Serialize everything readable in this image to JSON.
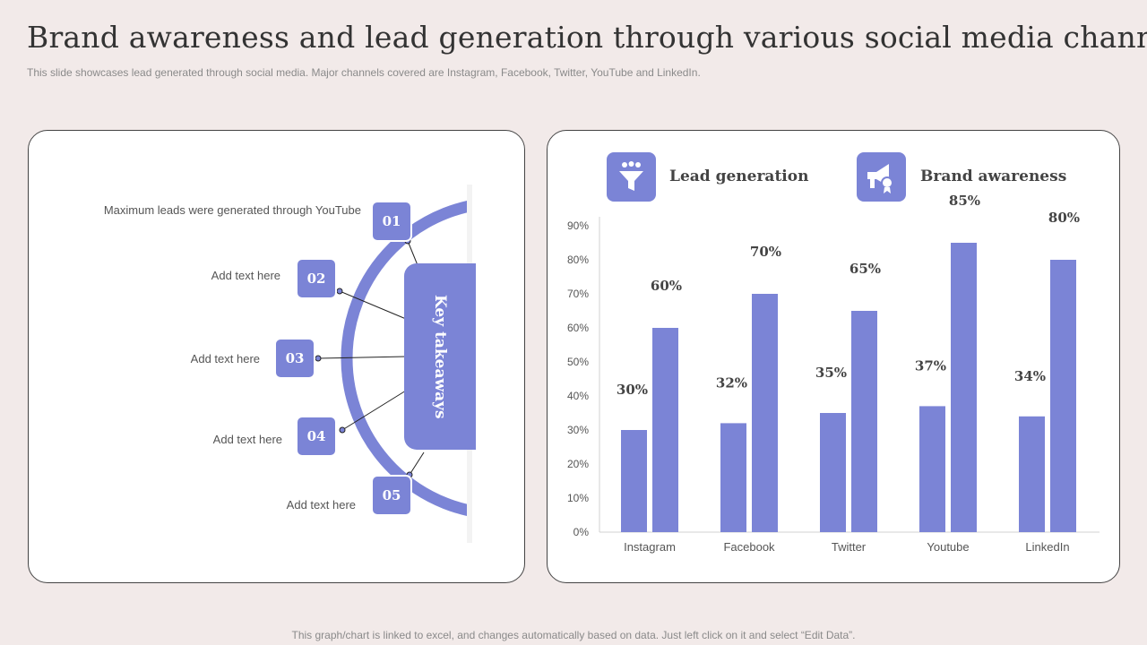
{
  "title": "Brand awareness and lead generation through various social media channels",
  "subtitle": "This slide showcases lead generated through social media. Major channels covered are Instagram, Facebook, Twitter, YouTube and LinkedIn.",
  "footer": "This graph/chart is linked to excel,  and changes automatically based on data. Just left click on it and select “Edit Data”.",
  "takeaways": {
    "center_label": "Key takeaways",
    "items": [
      {
        "num": "01",
        "text": "Maximum leads were generated through  YouTube"
      },
      {
        "num": "02",
        "text": "Add text here"
      },
      {
        "num": "03",
        "text": "Add text here"
      },
      {
        "num": "04",
        "text": "Add text here"
      },
      {
        "num": "05",
        "text": "Add text here"
      }
    ]
  },
  "legend": {
    "lead_icon": "funnel-icon",
    "brand_icon": "megaphone-icon"
  },
  "colors": {
    "accent": "#7b84d6",
    "background": "#f2eae9"
  },
  "chart_data": {
    "type": "bar",
    "categories": [
      "Instagram",
      "Facebook",
      "Twitter",
      "Youtube",
      "LinkedIn"
    ],
    "series": [
      {
        "name": "Lead generation",
        "values": [
          30,
          32,
          35,
          37,
          34
        ]
      },
      {
        "name": "Brand awareness",
        "values": [
          60,
          70,
          65,
          85,
          80
        ]
      }
    ],
    "data_labels": [
      [
        "30%",
        "32%",
        "35%",
        "37%",
        "34%"
      ],
      [
        "60%",
        "70%",
        "65%",
        "85%",
        "80%"
      ]
    ],
    "ylim": [
      0,
      90
    ],
    "yticks": [
      "0%",
      "10%",
      "20%",
      "30%",
      "40%",
      "50%",
      "60%",
      "70%",
      "80%",
      "90%"
    ],
    "legend_position": "top",
    "grid": false
  }
}
